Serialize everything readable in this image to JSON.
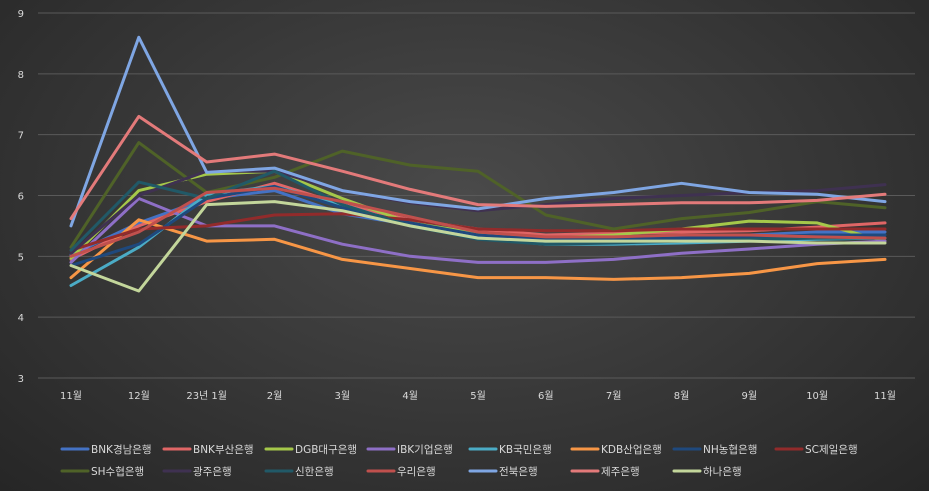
{
  "chart_data": {
    "type": "line",
    "title": "",
    "xlabel": "",
    "ylabel": "",
    "categories": [
      "11월",
      "12월",
      "23년 1월",
      "2월",
      "3월",
      "4월",
      "5월",
      "6월",
      "7월",
      "8월",
      "9월",
      "10월",
      "11월"
    ],
    "ylim": [
      3,
      9
    ],
    "yticks": [
      3,
      4,
      5,
      6,
      7,
      8,
      9
    ],
    "grid": true,
    "legend": "bottom",
    "series": [
      {
        "name": "BNK경남은행",
        "color": "#4472c4",
        "values": [
          5.02,
          5.55,
          5.95,
          6.08,
          5.7,
          5.52,
          5.32,
          5.25,
          5.3,
          5.32,
          5.35,
          5.4,
          5.4
        ]
      },
      {
        "name": "BNK부산은행",
        "color": "#e06666",
        "values": [
          4.95,
          5.5,
          5.9,
          6.2,
          5.85,
          5.6,
          5.45,
          5.35,
          5.38,
          5.4,
          5.42,
          5.48,
          5.55
        ]
      },
      {
        "name": "DGB대구은행",
        "color": "#a5c84a",
        "values": [
          4.97,
          6.08,
          6.35,
          6.4,
          5.95,
          5.55,
          5.38,
          5.3,
          5.35,
          5.45,
          5.58,
          5.55,
          5.25
        ]
      },
      {
        "name": "IBK기업은행",
        "color": "#8e6fc6",
        "values": [
          4.9,
          5.95,
          5.5,
          5.5,
          5.2,
          5.0,
          4.9,
          4.9,
          4.95,
          5.05,
          5.12,
          5.2,
          5.25
        ]
      },
      {
        "name": "KB국민은행",
        "color": "#4bacc6",
        "values": [
          4.52,
          5.15,
          6.02,
          6.15,
          5.85,
          5.5,
          5.3,
          5.2,
          5.2,
          5.22,
          5.25,
          5.28,
          5.3
        ]
      },
      {
        "name": "KDB산업은행",
        "color": "#f79646",
        "values": [
          4.65,
          5.6,
          5.25,
          5.28,
          4.95,
          4.8,
          4.65,
          4.65,
          4.62,
          4.65,
          4.72,
          4.88,
          4.95
        ]
      },
      {
        "name": "NH농협은행",
        "color": "#1f497d",
        "values": [
          4.85,
          5.2,
          5.95,
          6.15,
          5.8,
          5.55,
          5.35,
          5.28,
          5.28,
          5.3,
          5.32,
          5.35,
          5.35
        ]
      },
      {
        "name": "SC제일은행",
        "color": "#922b2b",
        "values": [
          5.1,
          5.45,
          5.5,
          5.68,
          5.7,
          5.6,
          5.45,
          5.42,
          5.42,
          5.45,
          5.45,
          5.45,
          5.45
        ]
      },
      {
        "name": "SH수협은행",
        "color": "#4f6228",
        "values": [
          5.15,
          6.87,
          6.05,
          6.3,
          6.73,
          6.5,
          6.4,
          5.68,
          5.45,
          5.62,
          5.72,
          5.9,
          5.8
        ]
      },
      {
        "name": "광주은행",
        "color": "#3f3151",
        "values": [
          5.05,
          6.0,
          6.4,
          6.4,
          6.08,
          5.88,
          5.75,
          5.85,
          5.95,
          6.0,
          6.05,
          6.08,
          6.18
        ]
      },
      {
        "name": "신한은행",
        "color": "#215967",
        "values": [
          5.1,
          6.22,
          5.95,
          6.4,
          5.85,
          5.5,
          5.28,
          5.2,
          5.22,
          5.25,
          5.28,
          5.3,
          5.3
        ]
      },
      {
        "name": "우리은행",
        "color": "#c0504d",
        "values": [
          5.0,
          5.4,
          6.05,
          6.12,
          5.9,
          5.65,
          5.4,
          5.32,
          5.32,
          5.35,
          5.35,
          5.32,
          5.3
        ]
      },
      {
        "name": "전북은행",
        "color": "#7fa6e3",
        "values": [
          5.5,
          8.6,
          6.38,
          6.45,
          6.08,
          5.9,
          5.78,
          5.95,
          6.05,
          6.2,
          6.05,
          6.02,
          5.9
        ]
      },
      {
        "name": "제주은행",
        "color": "#e37a7a",
        "values": [
          5.62,
          7.3,
          6.55,
          6.68,
          6.4,
          6.1,
          5.85,
          5.82,
          5.85,
          5.88,
          5.88,
          5.92,
          6.02
        ]
      },
      {
        "name": "하나은행",
        "color": "#c3d69b",
        "values": [
          4.85,
          4.43,
          5.85,
          5.9,
          5.75,
          5.5,
          5.3,
          5.25,
          5.25,
          5.25,
          5.25,
          5.22,
          5.22
        ]
      }
    ]
  }
}
